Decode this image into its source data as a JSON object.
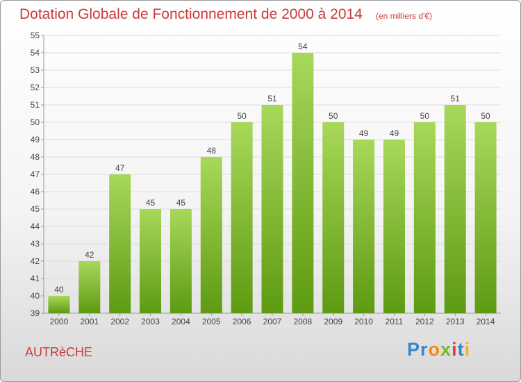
{
  "title": "Dotation Globale de Fonctionnement de 2000 à 2014",
  "unit": "(en milliers d'€)",
  "commune": "AUTRèCHE",
  "logo": {
    "letters": [
      "P",
      "r",
      "o",
      "x",
      "i",
      "t",
      "i"
    ],
    "colors": [
      "#3a86c8",
      "#3a86c8",
      "#f08a1c",
      "#76b82a",
      "#e23b3b",
      "#3a86c8",
      "#f0b81c"
    ]
  },
  "colors": {
    "title": "#cc3a3a",
    "bar_top": "#a8d85a",
    "bar_bottom": "#5e9a12",
    "grid": "#dddddd",
    "text": "#444444"
  },
  "chart_data": {
    "type": "bar",
    "categories": [
      "2000",
      "2001",
      "2002",
      "2003",
      "2004",
      "2005",
      "2006",
      "2007",
      "2008",
      "2009",
      "2010",
      "2011",
      "2012",
      "2013",
      "2014"
    ],
    "values": [
      40,
      42,
      47,
      45,
      45,
      48,
      50,
      51,
      54,
      50,
      49,
      49,
      50,
      51,
      50
    ],
    "ylim": [
      39,
      55
    ],
    "yticks": [
      "39",
      "40",
      "41",
      "42",
      "43",
      "44",
      "45",
      "46",
      "47",
      "48",
      "49",
      "50",
      "51",
      "52",
      "53",
      "54",
      "55"
    ],
    "ytick_values": [
      39,
      40,
      41,
      42,
      43,
      44,
      45,
      46,
      47,
      48,
      49,
      50,
      51,
      52,
      53,
      54,
      55
    ],
    "grid": true
  }
}
